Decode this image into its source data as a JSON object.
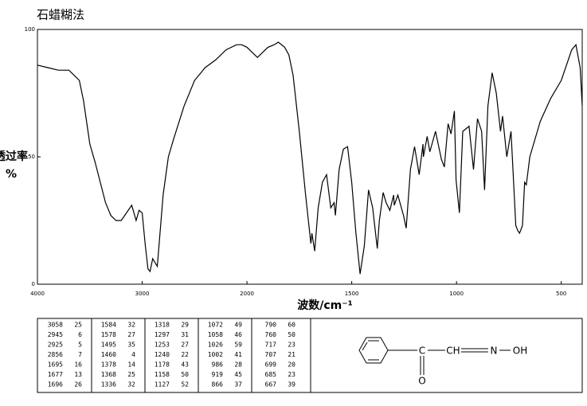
{
  "chart_data": {
    "type": "line",
    "title": "石蜡糊法",
    "y_label": "透过率\n%",
    "x_label": "波数/cm⁻¹",
    "xlim": [
      4000,
      400
    ],
    "x_compressed_above": 2000,
    "xticks": [
      4000,
      3000,
      2000,
      1500,
      1000,
      500
    ],
    "ylim": [
      0,
      100
    ],
    "yticks": [
      0,
      50,
      100
    ],
    "color": "#000000",
    "x": [
      4000,
      3900,
      3800,
      3700,
      3650,
      3600,
      3560,
      3500,
      3450,
      3400,
      3350,
      3300,
      3250,
      3200,
      3150,
      3100,
      3058,
      3030,
      3000,
      2970,
      2945,
      2925,
      2900,
      2870,
      2856,
      2800,
      2750,
      2700,
      2600,
      2500,
      2400,
      2300,
      2200,
      2100,
      2050,
      2000,
      1950,
      1900,
      1870,
      1850,
      1820,
      1800,
      1780,
      1750,
      1720,
      1695,
      1690,
      1677,
      1660,
      1640,
      1620,
      1600,
      1584,
      1578,
      1560,
      1540,
      1520,
      1500,
      1495,
      1480,
      1460,
      1440,
      1420,
      1400,
      1378,
      1368,
      1350,
      1336,
      1318,
      1300,
      1297,
      1280,
      1253,
      1240,
      1220,
      1200,
      1178,
      1160,
      1158,
      1140,
      1127,
      1100,
      1072,
      1058,
      1040,
      1026,
      1010,
      1002,
      986,
      970,
      940,
      919,
      900,
      880,
      866,
      850,
      830,
      810,
      790,
      780,
      760,
      740,
      717,
      707,
      699,
      685,
      675,
      667,
      650,
      600,
      550,
      500,
      450,
      430,
      410,
      400
    ],
    "values": [
      86,
      85,
      84,
      84,
      82,
      80,
      72,
      55,
      48,
      40,
      32,
      27,
      25,
      25,
      28,
      31,
      25,
      29,
      28,
      15,
      6,
      5,
      10,
      8,
      7,
      35,
      50,
      57,
      70,
      80,
      85,
      88,
      92,
      94,
      94,
      93,
      89,
      93,
      94,
      95,
      93,
      90,
      82,
      60,
      35,
      16,
      20,
      13,
      30,
      40,
      43,
      30,
      32,
      27,
      45,
      53,
      54,
      40,
      35,
      20,
      4,
      15,
      37,
      30,
      14,
      25,
      36,
      32,
      29,
      35,
      31,
      35,
      27,
      22,
      45,
      54,
      43,
      55,
      50,
      58,
      52,
      60,
      49,
      46,
      63,
      59,
      68,
      41,
      28,
      60,
      62,
      45,
      65,
      60,
      37,
      70,
      83,
      75,
      60,
      66,
      50,
      60,
      23,
      21,
      20,
      23,
      40,
      39,
      50,
      64,
      73,
      80,
      92,
      94,
      85,
      70
    ]
  },
  "peak_table": [
    [
      [
        "3058",
        "25"
      ],
      [
        "2945",
        "6"
      ],
      [
        "2925",
        "5"
      ],
      [
        "2856",
        "7"
      ],
      [
        "1695",
        "16"
      ],
      [
        "1677",
        "13"
      ],
      [
        "1696",
        "26"
      ]
    ],
    [
      [
        "1584",
        "32"
      ],
      [
        "1578",
        "27"
      ],
      [
        "1495",
        "35"
      ],
      [
        "1460",
        "4"
      ],
      [
        "1378",
        "14"
      ],
      [
        "1368",
        "25"
      ],
      [
        "1336",
        "32"
      ]
    ],
    [
      [
        "1318",
        "29"
      ],
      [
        "1297",
        "31"
      ],
      [
        "1253",
        "27"
      ],
      [
        "1240",
        "22"
      ],
      [
        "1178",
        "43"
      ],
      [
        "1158",
        "50"
      ],
      [
        "1127",
        "52"
      ]
    ],
    [
      [
        "1072",
        "49"
      ],
      [
        "1058",
        "46"
      ],
      [
        "1026",
        "59"
      ],
      [
        "1002",
        "41"
      ],
      [
        "986",
        "28"
      ],
      [
        "919",
        "45"
      ],
      [
        "866",
        "37"
      ]
    ],
    [
      [
        "790",
        "60"
      ],
      [
        "760",
        "50"
      ],
      [
        "717",
        "23"
      ],
      [
        "707",
        "21"
      ],
      [
        "699",
        "20"
      ],
      [
        "685",
        "23"
      ],
      [
        "667",
        "39"
      ]
    ]
  ],
  "structure": {
    "carbonyl": "C",
    "oxygen": "O",
    "methine": "CH",
    "nitrogen": "N",
    "hydroxyl": "OH"
  }
}
